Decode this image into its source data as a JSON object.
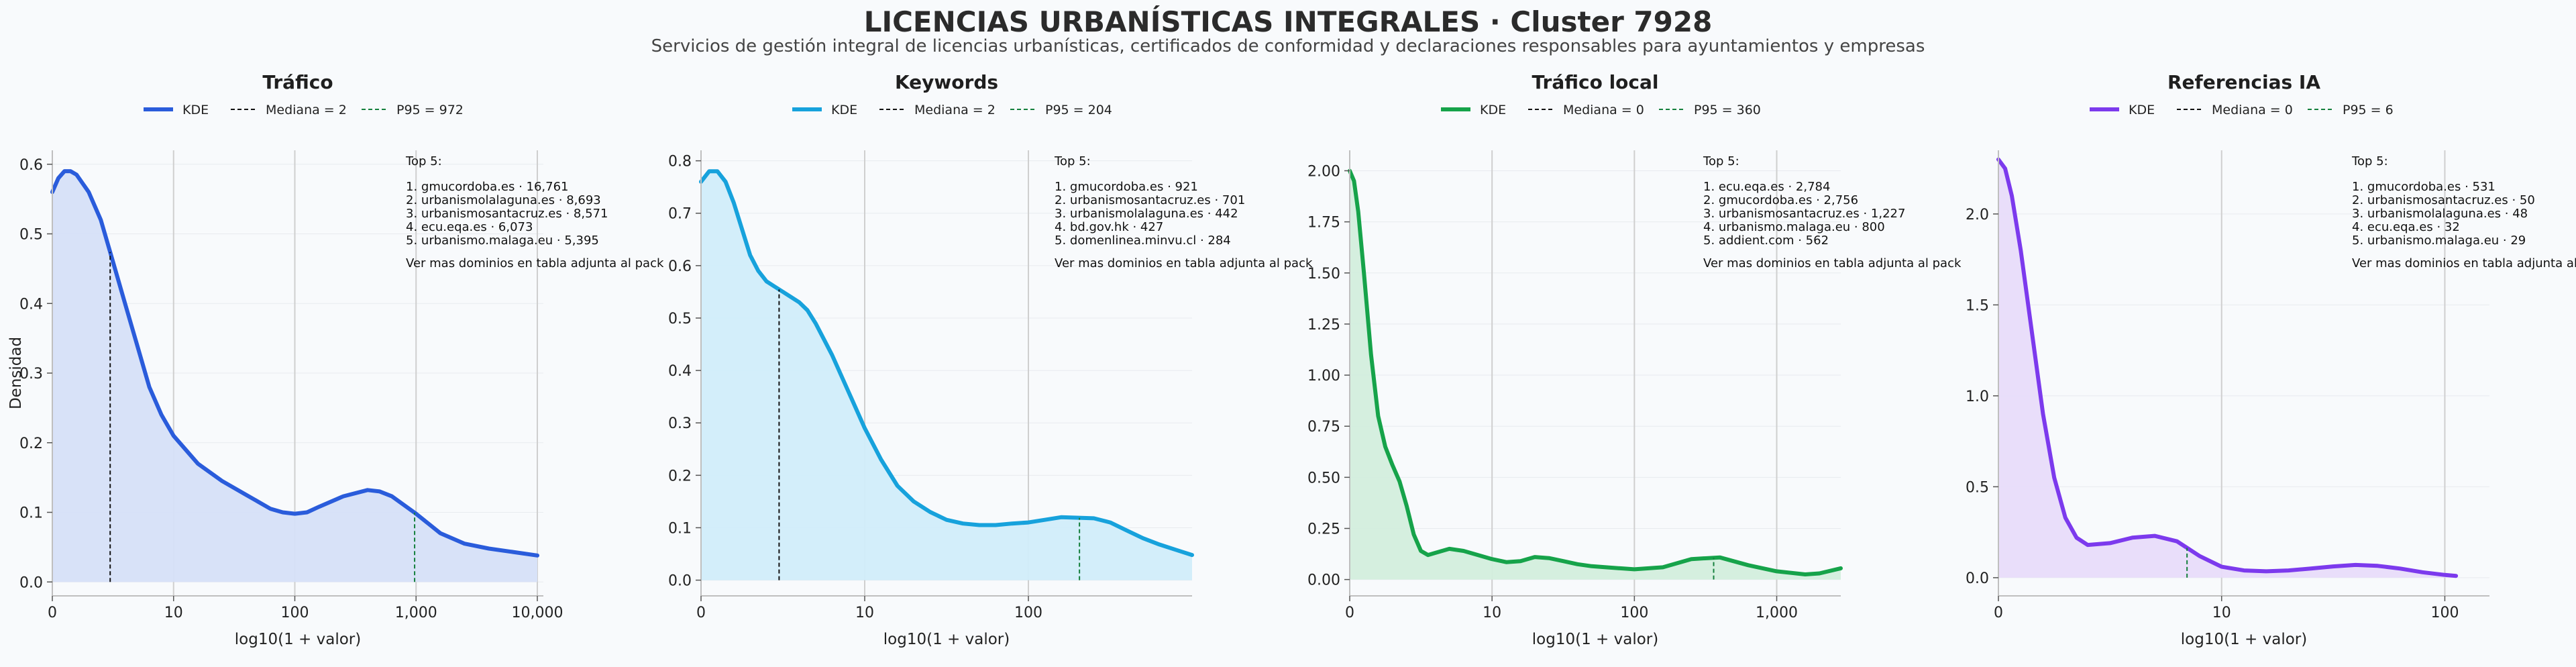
{
  "title": "LICENCIAS URBANÍSTICAS INTEGRALES · Cluster 7928",
  "subtitle": "Servicios de gestión integral de licencias urbanísticas, certificados de conformidad y declaraciones responsables para ayuntamientos y empresas",
  "chart_data": [
    {
      "type": "area",
      "title": "Tráfico",
      "xlabel": "log10(1 + valor)",
      "ylabel": "Densidad",
      "color": "#2a5cdb",
      "fill": "#d6e0f8",
      "xlim": [
        0,
        4.05
      ],
      "ylim": [
        -0.02,
        0.62
      ],
      "yticks": [
        0.0,
        0.1,
        0.2,
        0.3,
        0.4,
        0.5,
        0.6
      ],
      "ytick_labels": [
        "0.0",
        "0.1",
        "0.2",
        "0.3",
        "0.4",
        "0.5",
        "0.6"
      ],
      "xticks": [
        0,
        1,
        2,
        3,
        4
      ],
      "xtick_labels": [
        "0",
        "10",
        "100",
        "1,000",
        "10,000"
      ],
      "x": [
        0,
        0.05,
        0.1,
        0.15,
        0.2,
        0.3,
        0.4,
        0.5,
        0.6,
        0.7,
        0.8,
        0.9,
        1.0,
        1.1,
        1.2,
        1.4,
        1.6,
        1.8,
        1.9,
        2.0,
        2.1,
        2.2,
        2.4,
        2.6,
        2.7,
        2.8,
        3.0,
        3.2,
        3.4,
        3.6,
        3.8,
        4.0
      ],
      "y": [
        0.56,
        0.58,
        0.59,
        0.59,
        0.585,
        0.56,
        0.52,
        0.46,
        0.4,
        0.34,
        0.28,
        0.24,
        0.21,
        0.19,
        0.17,
        0.145,
        0.125,
        0.105,
        0.1,
        0.098,
        0.1,
        0.108,
        0.123,
        0.132,
        0.13,
        0.123,
        0.098,
        0.07,
        0.055,
        0.048,
        0.043,
        0.038
      ],
      "median": {
        "label": "Mediana = 2",
        "x": 0.477
      },
      "p95": {
        "label": "P95 = 972",
        "x": 2.988
      },
      "legend_kde": "KDE",
      "top_title": "Top 5:",
      "top_items": [
        "1. gmucordoba.es · 16,761",
        "2. urbanismolalaguna.es · 8,693",
        "3. urbanismosantacruz.es · 8,571",
        "4. ecu.eqa.es · 6,073",
        "5. urbanismo.malaga.eu · 5,395"
      ],
      "top_note": "Ver mas dominios en tabla adjunta al pack"
    },
    {
      "type": "area",
      "title": "Keywords",
      "xlabel": "log10(1 + valor)",
      "color": "#17a2dc",
      "fill": "#d1edfa",
      "xlim": [
        0,
        3.0
      ],
      "ylim": [
        -0.03,
        0.82
      ],
      "yticks": [
        0.0,
        0.1,
        0.2,
        0.3,
        0.4,
        0.5,
        0.6,
        0.7,
        0.8
      ],
      "ytick_labels": [
        "0.0",
        "0.1",
        "0.2",
        "0.3",
        "0.4",
        "0.5",
        "0.6",
        "0.7",
        "0.8"
      ],
      "xticks": [
        0,
        1,
        2
      ],
      "xtick_labels": [
        "0",
        "10",
        "100"
      ],
      "x": [
        0,
        0.05,
        0.1,
        0.15,
        0.2,
        0.25,
        0.3,
        0.35,
        0.4,
        0.45,
        0.5,
        0.55,
        0.6,
        0.65,
        0.7,
        0.8,
        0.9,
        1.0,
        1.1,
        1.2,
        1.3,
        1.4,
        1.5,
        1.6,
        1.7,
        1.8,
        1.9,
        2.0,
        2.2,
        2.4,
        2.5,
        2.6,
        2.7,
        2.8,
        2.9,
        3.0
      ],
      "y": [
        0.76,
        0.78,
        0.78,
        0.76,
        0.72,
        0.67,
        0.62,
        0.59,
        0.57,
        0.56,
        0.55,
        0.54,
        0.53,
        0.515,
        0.49,
        0.43,
        0.36,
        0.29,
        0.23,
        0.18,
        0.15,
        0.13,
        0.115,
        0.108,
        0.105,
        0.105,
        0.108,
        0.11,
        0.12,
        0.118,
        0.11,
        0.095,
        0.08,
        0.068,
        0.058,
        0.048
      ],
      "median": {
        "label": "Mediana = 2",
        "x": 0.477
      },
      "p95": {
        "label": "P95 = 204",
        "x": 2.312
      },
      "legend_kde": "KDE",
      "top_title": "Top 5:",
      "top_items": [
        "1. gmucordoba.es · 921",
        "2. urbanismosantacruz.es · 701",
        "3. urbanismolalaguna.es · 442",
        "4. bd.gov.hk · 427",
        "5. domenlinea.minvu.cl · 284"
      ],
      "top_note": "Ver mas dominios en tabla adjunta al pack"
    },
    {
      "type": "area",
      "title": "Tráfico local",
      "xlabel": "log10(1 + valor)",
      "color": "#16a34a",
      "fill": "#d3eedd",
      "xlim": [
        0,
        3.45
      ],
      "ylim": [
        -0.08,
        2.1
      ],
      "yticks": [
        0.0,
        0.25,
        0.5,
        0.75,
        1.0,
        1.25,
        1.5,
        1.75,
        2.0
      ],
      "ytick_labels": [
        "0.00",
        "0.25",
        "0.50",
        "0.75",
        "1.00",
        "1.25",
        "1.50",
        "1.75",
        "2.00"
      ],
      "xticks": [
        0,
        1,
        2,
        3
      ],
      "xtick_labels": [
        "0",
        "10",
        "100",
        "1,000"
      ],
      "x": [
        0,
        0.03,
        0.06,
        0.1,
        0.15,
        0.2,
        0.25,
        0.3,
        0.35,
        0.4,
        0.45,
        0.5,
        0.55,
        0.6,
        0.7,
        0.8,
        0.9,
        1.0,
        1.1,
        1.2,
        1.3,
        1.4,
        1.5,
        1.6,
        1.7,
        1.8,
        1.9,
        2.0,
        2.2,
        2.4,
        2.6,
        2.8,
        3.0,
        3.2,
        3.3,
        3.45
      ],
      "y": [
        2.0,
        1.95,
        1.8,
        1.5,
        1.1,
        0.8,
        0.65,
        0.56,
        0.48,
        0.36,
        0.22,
        0.14,
        0.12,
        0.13,
        0.15,
        0.14,
        0.12,
        0.1,
        0.085,
        0.09,
        0.11,
        0.105,
        0.09,
        0.075,
        0.065,
        0.06,
        0.055,
        0.05,
        0.06,
        0.1,
        0.108,
        0.07,
        0.04,
        0.025,
        0.03,
        0.055
      ],
      "median": {
        "label": "Mediana = 0",
        "x": 0
      },
      "p95": {
        "label": "P95 = 360",
        "x": 2.557
      },
      "legend_kde": "KDE",
      "top_title": "Top 5:",
      "top_items": [
        "1. ecu.eqa.es · 2,784",
        "2. gmucordoba.es · 2,756",
        "3. urbanismosantacruz.es · 1,227",
        "4. urbanismo.malaga.eu · 800",
        "5. addient.com · 562"
      ],
      "top_note": "Ver mas dominios en tabla adjunta al pack"
    },
    {
      "type": "area",
      "title": "Referencias IA",
      "xlabel": "log10(1 + valor)",
      "color": "#7c3aed",
      "fill": "#e8dcfa",
      "xlim": [
        0,
        2.2
      ],
      "ylim": [
        -0.1,
        2.35
      ],
      "yticks": [
        0.0,
        0.5,
        1.0,
        1.5,
        2.0
      ],
      "ytick_labels": [
        "0.0",
        "0.5",
        "1.0",
        "1.5",
        "2.0"
      ],
      "xticks": [
        0,
        1,
        2
      ],
      "xtick_labels": [
        "0",
        "10",
        "100"
      ],
      "x": [
        0,
        0.03,
        0.06,
        0.1,
        0.15,
        0.2,
        0.25,
        0.3,
        0.35,
        0.4,
        0.5,
        0.6,
        0.7,
        0.8,
        0.9,
        1.0,
        1.1,
        1.2,
        1.3,
        1.4,
        1.5,
        1.6,
        1.7,
        1.8,
        1.9,
        2.0,
        2.05
      ],
      "y": [
        2.3,
        2.25,
        2.1,
        1.8,
        1.35,
        0.9,
        0.55,
        0.33,
        0.22,
        0.18,
        0.19,
        0.22,
        0.23,
        0.2,
        0.12,
        0.06,
        0.04,
        0.035,
        0.04,
        0.05,
        0.062,
        0.07,
        0.065,
        0.05,
        0.03,
        0.015,
        0.01
      ],
      "median": {
        "label": "Mediana = 0",
        "x": 0
      },
      "p95": {
        "label": "P95 = 6",
        "x": 0.845
      },
      "legend_kde": "KDE",
      "top_title": "Top 5:",
      "top_items": [
        "1. gmucordoba.es · 531",
        "2. urbanismosantacruz.es · 50",
        "3. urbanismolalaguna.es · 48",
        "4. ecu.eqa.es · 32",
        "5. urbanismo.malaga.eu · 29"
      ],
      "top_note": "Ver mas dominios en tabla adjunta al pack"
    }
  ]
}
